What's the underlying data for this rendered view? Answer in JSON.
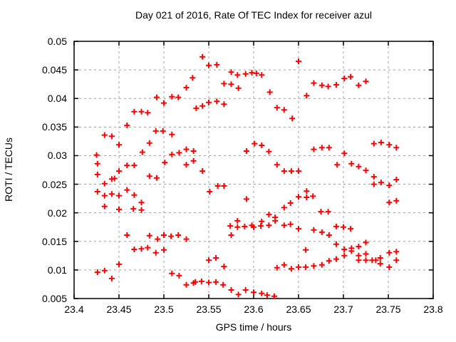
{
  "chart_data": {
    "type": "scatter",
    "title": "Day 021 of 2016, Rate Of TEC Index for receiver azul",
    "xlabel": "GPS time / hours",
    "ylabel": "ROTI / TECUs",
    "xlim": [
      23.4,
      23.8
    ],
    "ylim": [
      0.005,
      0.05
    ],
    "xtick_values": [
      23.4,
      23.45,
      23.5,
      23.55,
      23.6,
      23.65,
      23.7,
      23.75,
      23.8
    ],
    "xtick_labels": [
      "23.4",
      "23.45",
      "23.5",
      "23.55",
      "23.6",
      "23.65",
      "23.7",
      "23.75",
      "23.8"
    ],
    "ytick_values": [
      0.005,
      0.01,
      0.015,
      0.02,
      0.025,
      0.03,
      0.035,
      0.04,
      0.045,
      0.05
    ],
    "ytick_labels": [
      "0.005",
      "0.01",
      "0.015",
      "0.02",
      "0.025",
      "0.03",
      "0.035",
      "0.04",
      "0.045",
      "0.05"
    ],
    "grid": true,
    "legend_position": "none",
    "colors": {
      "marker": "#ff0000",
      "grid": "#a0a0a0",
      "border": "#000000",
      "background": "#ffffff",
      "text": "#000000"
    },
    "marker": {
      "shape": "plus",
      "size": 9,
      "stroke_width": 2
    },
    "series": [
      {
        "name": "ROTI",
        "points": [
          [
            23.492,
            0.0402
          ],
          [
            23.5,
            0.0392
          ],
          [
            23.509,
            0.0403
          ],
          [
            23.516,
            0.0402
          ],
          [
            23.525,
            0.0419
          ],
          [
            23.532,
            0.0436
          ],
          [
            23.467,
            0.0377
          ],
          [
            23.475,
            0.0377
          ],
          [
            23.482,
            0.0375
          ],
          [
            23.459,
            0.0353
          ],
          [
            23.543,
            0.0473
          ],
          [
            23.55,
            0.0458
          ],
          [
            23.559,
            0.0459
          ],
          [
            23.575,
            0.0446
          ],
          [
            23.582,
            0.0441
          ],
          [
            23.591,
            0.0443
          ],
          [
            23.598,
            0.0445
          ],
          [
            23.603,
            0.0444
          ],
          [
            23.609,
            0.0441
          ],
          [
            23.567,
            0.0426
          ],
          [
            23.575,
            0.0425
          ],
          [
            23.583,
            0.0418
          ],
          [
            23.618,
            0.0411
          ],
          [
            23.536,
            0.0383
          ],
          [
            23.543,
            0.0387
          ],
          [
            23.55,
            0.0393
          ],
          [
            23.559,
            0.0395
          ],
          [
            23.567,
            0.039
          ],
          [
            23.626,
            0.0384
          ],
          [
            23.634,
            0.038
          ],
          [
            23.65,
            0.0465
          ],
          [
            23.643,
            0.0365
          ],
          [
            23.659,
            0.0405
          ],
          [
            23.667,
            0.0427
          ],
          [
            23.676,
            0.0423
          ],
          [
            23.683,
            0.0421
          ],
          [
            23.692,
            0.0424
          ],
          [
            23.701,
            0.0435
          ],
          [
            23.708,
            0.0438
          ],
          [
            23.717,
            0.0423
          ],
          [
            23.725,
            0.043
          ],
          [
            23.434,
            0.0336
          ],
          [
            23.442,
            0.0334
          ],
          [
            23.45,
            0.0319
          ],
          [
            23.425,
            0.0301
          ],
          [
            23.484,
            0.0322
          ],
          [
            23.476,
            0.0306
          ],
          [
            23.491,
            0.0343
          ],
          [
            23.499,
            0.0343
          ],
          [
            23.509,
            0.0337
          ],
          [
            23.426,
            0.0286
          ],
          [
            23.426,
            0.0267
          ],
          [
            23.45,
            0.0273
          ],
          [
            23.459,
            0.0283
          ],
          [
            23.467,
            0.0283
          ],
          [
            23.442,
            0.0259
          ],
          [
            23.445,
            0.026
          ],
          [
            23.434,
            0.0251
          ],
          [
            23.426,
            0.0237
          ],
          [
            23.434,
            0.023
          ],
          [
            23.442,
            0.0233
          ],
          [
            23.45,
            0.023
          ],
          [
            23.459,
            0.024
          ],
          [
            23.467,
            0.0231
          ],
          [
            23.434,
            0.0211
          ],
          [
            23.45,
            0.0206
          ],
          [
            23.466,
            0.0207
          ],
          [
            23.475,
            0.0218
          ],
          [
            23.475,
            0.0205
          ],
          [
            23.509,
            0.0302
          ],
          [
            23.517,
            0.0305
          ],
          [
            23.525,
            0.0311
          ],
          [
            23.533,
            0.0308
          ],
          [
            23.533,
            0.0291
          ],
          [
            23.525,
            0.0284
          ],
          [
            23.501,
            0.0288
          ],
          [
            23.484,
            0.0264
          ],
          [
            23.492,
            0.0261
          ],
          [
            23.543,
            0.0273
          ],
          [
            23.56,
            0.0247
          ],
          [
            23.567,
            0.0247
          ],
          [
            23.551,
            0.0237
          ],
          [
            23.592,
            0.0308
          ],
          [
            23.601,
            0.0321
          ],
          [
            23.609,
            0.0318
          ],
          [
            23.617,
            0.0307
          ],
          [
            23.626,
            0.0284
          ],
          [
            23.634,
            0.0273
          ],
          [
            23.642,
            0.0273
          ],
          [
            23.65,
            0.0273
          ],
          [
            23.592,
            0.0224
          ],
          [
            23.634,
            0.0209
          ],
          [
            23.641,
            0.0217
          ],
          [
            23.65,
            0.0228
          ],
          [
            23.659,
            0.0238
          ],
          [
            23.659,
            0.0227
          ],
          [
            23.666,
            0.0229
          ],
          [
            23.667,
            0.0311
          ],
          [
            23.676,
            0.0314
          ],
          [
            23.684,
            0.0314
          ],
          [
            23.701,
            0.0304
          ],
          [
            23.734,
            0.0321
          ],
          [
            23.742,
            0.0323
          ],
          [
            23.751,
            0.0319
          ],
          [
            23.759,
            0.0314
          ],
          [
            23.693,
            0.0284
          ],
          [
            23.709,
            0.0286
          ],
          [
            23.717,
            0.0281
          ],
          [
            23.725,
            0.0274
          ],
          [
            23.734,
            0.0263
          ],
          [
            23.734,
            0.025
          ],
          [
            23.742,
            0.0253
          ],
          [
            23.751,
            0.0248
          ],
          [
            23.759,
            0.0258
          ],
          [
            23.751,
            0.0218
          ],
          [
            23.759,
            0.0221
          ],
          [
            23.675,
            0.0202
          ],
          [
            23.683,
            0.0202
          ],
          [
            23.426,
            0.0096
          ],
          [
            23.434,
            0.0099
          ],
          [
            23.442,
            0.0085
          ],
          [
            23.45,
            0.011
          ],
          [
            23.459,
            0.0161
          ],
          [
            23.467,
            0.0136
          ],
          [
            23.475,
            0.0137
          ],
          [
            23.482,
            0.0139
          ],
          [
            23.484,
            0.016
          ],
          [
            23.491,
            0.013
          ],
          [
            23.493,
            0.0154
          ],
          [
            23.5,
            0.0161
          ],
          [
            23.5,
            0.0135
          ],
          [
            23.508,
            0.0159
          ],
          [
            23.516,
            0.0161
          ],
          [
            23.525,
            0.0154
          ],
          [
            23.509,
            0.0094
          ],
          [
            23.517,
            0.009
          ],
          [
            23.525,
            0.0074
          ],
          [
            23.533,
            0.0077
          ],
          [
            23.535,
            0.0079
          ],
          [
            23.542,
            0.008
          ],
          [
            23.55,
            0.0078
          ],
          [
            23.558,
            0.0079
          ],
          [
            23.566,
            0.0074
          ],
          [
            23.575,
            0.0065
          ],
          [
            23.583,
            0.0057
          ],
          [
            23.591,
            0.0065
          ],
          [
            23.6,
            0.0061
          ],
          [
            23.609,
            0.0059
          ],
          [
            23.615,
            0.0056
          ],
          [
            23.623,
            0.0054
          ],
          [
            23.55,
            0.0117
          ],
          [
            23.558,
            0.0121
          ],
          [
            23.567,
            0.0106
          ],
          [
            23.574,
            0.0177
          ],
          [
            23.575,
            0.0161
          ],
          [
            23.582,
            0.0186
          ],
          [
            23.582,
            0.0175
          ],
          [
            23.59,
            0.0176
          ],
          [
            23.598,
            0.0178
          ],
          [
            23.6,
            0.0175
          ],
          [
            23.609,
            0.0185
          ],
          [
            23.608,
            0.0177
          ],
          [
            23.617,
            0.0197
          ],
          [
            23.617,
            0.0178
          ],
          [
            23.624,
            0.0192
          ],
          [
            23.624,
            0.0186
          ],
          [
            23.634,
            0.0178
          ],
          [
            23.641,
            0.018
          ],
          [
            23.65,
            0.0172
          ],
          [
            23.626,
            0.0104
          ],
          [
            23.634,
            0.0109
          ],
          [
            23.642,
            0.0102
          ],
          [
            23.65,
            0.0105
          ],
          [
            23.658,
            0.0135
          ],
          [
            23.658,
            0.0105
          ],
          [
            23.667,
            0.0107
          ],
          [
            23.667,
            0.017
          ],
          [
            23.676,
            0.0166
          ],
          [
            23.684,
            0.0161
          ],
          [
            23.692,
            0.0176
          ],
          [
            23.7,
            0.0175
          ],
          [
            23.708,
            0.0172
          ],
          [
            23.692,
            0.0145
          ],
          [
            23.701,
            0.0136
          ],
          [
            23.709,
            0.0138
          ],
          [
            23.709,
            0.0133
          ],
          [
            23.717,
            0.0141
          ],
          [
            23.725,
            0.0148
          ],
          [
            23.701,
            0.0125
          ],
          [
            23.717,
            0.0125
          ],
          [
            23.717,
            0.0117
          ],
          [
            23.725,
            0.0128
          ],
          [
            23.725,
            0.0117
          ],
          [
            23.684,
            0.0116
          ],
          [
            23.692,
            0.0119
          ],
          [
            23.676,
            0.0109
          ],
          [
            23.732,
            0.0117
          ],
          [
            23.736,
            0.0117
          ],
          [
            23.741,
            0.0121
          ],
          [
            23.741,
            0.0111
          ],
          [
            23.751,
            0.013
          ],
          [
            23.751,
            0.0105
          ],
          [
            23.759,
            0.0132
          ],
          [
            23.759,
            0.0117
          ]
        ]
      }
    ]
  }
}
